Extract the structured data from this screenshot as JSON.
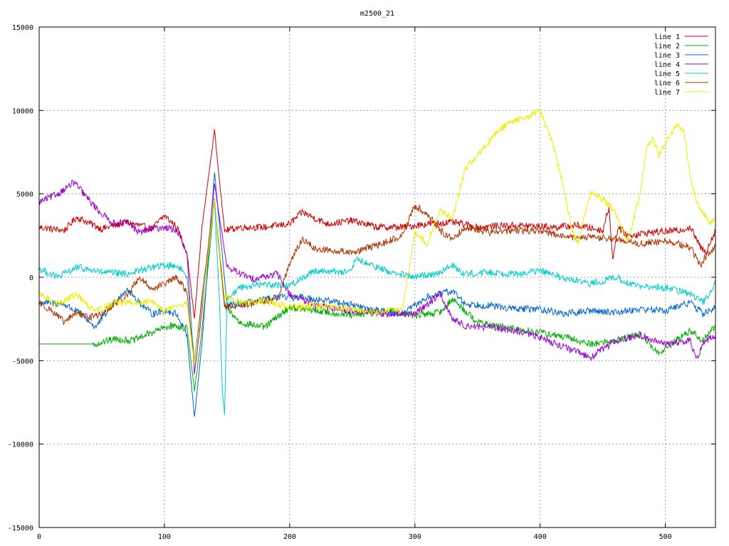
{
  "chart_data": {
    "type": "line",
    "title": "m2500_21",
    "xlabel": "",
    "ylabel": "",
    "xlim": [
      0,
      540
    ],
    "ylim": [
      -15000,
      15000
    ],
    "x_ticks": [
      0,
      100,
      200,
      300,
      400,
      500
    ],
    "y_ticks": [
      -15000,
      -10000,
      -5000,
      0,
      5000,
      10000,
      15000
    ],
    "grid": true,
    "legend_position": "top-right",
    "series": [
      {
        "name": "line 1",
        "color": "#cc0000",
        "x": [
          0,
          20,
          30,
          50,
          70,
          90,
          100,
          110,
          118,
          124,
          130,
          140,
          148,
          160,
          180,
          200,
          210,
          230,
          250,
          270,
          290,
          310,
          330,
          350,
          370,
          390,
          410,
          430,
          450,
          455,
          458,
          462,
          470,
          490,
          510,
          520,
          528,
          532,
          540
        ],
        "y": [
          3000,
          2800,
          3600,
          2900,
          3300,
          2900,
          3700,
          3000,
          1500,
          -2500,
          3000,
          8800,
          2800,
          3000,
          3000,
          3200,
          3900,
          3200,
          3400,
          3000,
          3000,
          3200,
          3300,
          3000,
          3100,
          3100,
          3000,
          3100,
          2800,
          4200,
          1000,
          3000,
          2500,
          2700,
          2800,
          3000,
          1800,
          1500,
          2800
        ]
      },
      {
        "name": "line 2",
        "color": "#00aa00",
        "x": [
          0,
          43,
          45,
          60,
          75,
          90,
          105,
          118,
          124,
          130,
          140,
          148,
          160,
          180,
          200,
          220,
          250,
          280,
          300,
          320,
          330,
          350,
          370,
          400,
          420,
          440,
          460,
          480,
          495,
          510,
          520,
          530,
          540
        ],
        "y": [
          -4000,
          -4000,
          -4000,
          -3700,
          -3800,
          -3300,
          -2900,
          -3000,
          -6800,
          -3200,
          4700,
          -1700,
          -2700,
          -3000,
          -1800,
          -2000,
          -2300,
          -2000,
          -2300,
          -2100,
          -1300,
          -2700,
          -3000,
          -3300,
          -3600,
          -4000,
          -3800,
          -3400,
          -4600,
          -3700,
          -3200,
          -3800,
          -2900
        ]
      },
      {
        "name": "line 3",
        "color": "#0066cc",
        "x": [
          0,
          20,
          35,
          45,
          60,
          70,
          80,
          90,
          100,
          110,
          118,
          124,
          130,
          140,
          150,
          170,
          190,
          210,
          240,
          270,
          290,
          310,
          330,
          340,
          360,
          380,
          400,
          420,
          440,
          460,
          480,
          500,
          520,
          530,
          540
        ],
        "y": [
          -1500,
          -1600,
          -2300,
          -3000,
          -1500,
          -700,
          -1500,
          -2200,
          -2000,
          -2200,
          -3500,
          -8400,
          -4000,
          6300,
          -1700,
          -1500,
          -1200,
          -1200,
          -1500,
          -2000,
          -2200,
          -1200,
          -800,
          -1600,
          -1700,
          -1900,
          -1900,
          -2200,
          -2000,
          -2100,
          -1900,
          -2000,
          -1500,
          -2200,
          -1800
        ]
      },
      {
        "name": "line 4",
        "color": "#9900cc",
        "x": [
          0,
          15,
          28,
          40,
          50,
          60,
          70,
          80,
          90,
          100,
          110,
          118,
          124,
          130,
          140,
          150,
          170,
          190,
          200,
          220,
          250,
          280,
          300,
          310,
          320,
          330,
          340,
          360,
          380,
          400,
          420,
          440,
          460,
          480,
          500,
          520,
          525,
          530,
          540
        ],
        "y": [
          4500,
          5000,
          5700,
          4600,
          3800,
          3200,
          3300,
          2700,
          2900,
          3000,
          2800,
          1400,
          -5800,
          -2000,
          5600,
          600,
          -100,
          200,
          -1000,
          -1700,
          -2000,
          -2200,
          -2200,
          -1600,
          -1000,
          -2500,
          -2900,
          -3000,
          -3200,
          -3600,
          -4200,
          -4800,
          -3800,
          -3500,
          -4000,
          -3800,
          -5000,
          -3900,
          -3500
        ]
      },
      {
        "name": "line 5",
        "color": "#00cccc",
        "x": [
          0,
          15,
          30,
          50,
          70,
          90,
          100,
          110,
          118,
          124,
          130,
          140,
          144,
          146,
          148,
          150,
          160,
          180,
          200,
          220,
          250,
          252,
          280,
          300,
          320,
          330,
          340,
          360,
          380,
          400,
          420,
          440,
          460,
          480,
          500,
          520,
          530,
          540
        ],
        "y": [
          500,
          0,
          600,
          300,
          200,
          600,
          700,
          700,
          100,
          -5000,
          -1400,
          4600,
          -1500,
          -6500,
          -8300,
          -1300,
          -600,
          -400,
          -500,
          400,
          300,
          1100,
          300,
          0,
          300,
          700,
          200,
          300,
          200,
          400,
          -100,
          -400,
          0,
          -600,
          -600,
          -1000,
          -1500,
          -400
        ]
      },
      {
        "name": "line 6",
        "color": "#aa3300",
        "x": [
          0,
          10,
          20,
          30,
          40,
          50,
          60,
          70,
          80,
          90,
          100,
          110,
          118,
          124,
          130,
          140,
          148,
          170,
          190,
          200,
          210,
          220,
          250,
          270,
          290,
          300,
          310,
          320,
          330,
          340,
          360,
          380,
          400,
          420,
          440,
          460,
          480,
          500,
          520,
          528,
          532,
          540
        ],
        "y": [
          -1500,
          -2000,
          -2700,
          -2100,
          -2400,
          -2200,
          -1600,
          -1100,
          0,
          -700,
          -400,
          0,
          -900,
          -5200,
          -1200,
          4800,
          -1800,
          -1600,
          -1300,
          800,
          2300,
          1700,
          1500,
          1900,
          2500,
          4300,
          3800,
          2800,
          2300,
          3000,
          2700,
          2800,
          2800,
          2400,
          2400,
          2300,
          2000,
          2200,
          1800,
          700,
          1200,
          1900
        ]
      },
      {
        "name": "line 7",
        "color": "#eeee00",
        "x": [
          0,
          15,
          30,
          40,
          50,
          60,
          70,
          80,
          90,
          100,
          110,
          118,
          124,
          130,
          140,
          148,
          160,
          180,
          200,
          220,
          250,
          270,
          280,
          290,
          300,
          310,
          320,
          330,
          340,
          350,
          360,
          370,
          380,
          390,
          400,
          410,
          420,
          425,
          430,
          440,
          450,
          460,
          470,
          480,
          485,
          490,
          495,
          500,
          505,
          510,
          515,
          520,
          525,
          530,
          535,
          540
        ],
        "y": [
          -1000,
          -1600,
          -1000,
          -1800,
          -1900,
          -1500,
          -1500,
          -1600,
          -1400,
          -2000,
          -1700,
          -1600,
          -5200,
          -1700,
          4700,
          -1200,
          -1500,
          -1400,
          -1800,
          -1700,
          -1900,
          -2100,
          -1900,
          -2000,
          2700,
          2000,
          4000,
          3500,
          6500,
          7300,
          8200,
          9000,
          9400,
          9600,
          10000,
          8000,
          5000,
          3000,
          2000,
          5000,
          4700,
          3900,
          2100,
          5000,
          7700,
          8300,
          7300,
          8000,
          8700,
          9100,
          8700,
          6000,
          4500,
          3900,
          3200,
          3500
        ]
      }
    ]
  }
}
